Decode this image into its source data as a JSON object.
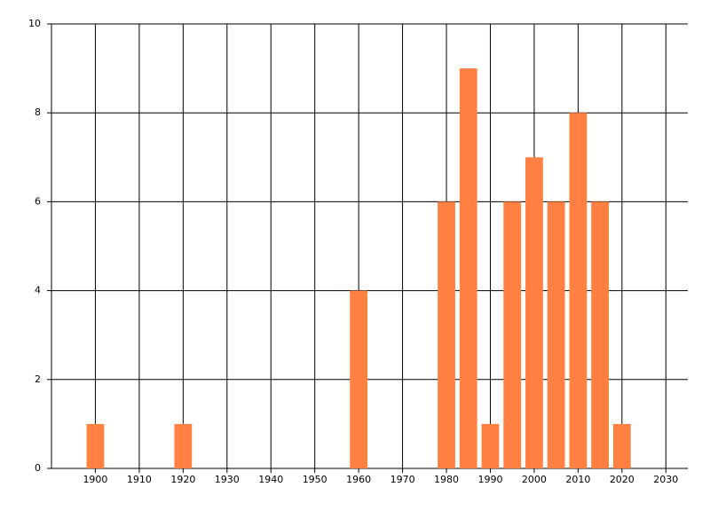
{
  "chart_data": {
    "type": "bar",
    "x": [
      1900,
      1920,
      1960,
      1980,
      1985,
      1990,
      1995,
      2000,
      2005,
      2010,
      2015,
      2020
    ],
    "values": [
      1,
      1,
      4,
      6,
      9,
      1,
      6,
      7,
      6,
      8,
      6,
      1
    ],
    "color": "#ff8040",
    "xlim": [
      1890,
      2035
    ],
    "xticks": [
      1900,
      1910,
      1920,
      1930,
      1940,
      1950,
      1960,
      1970,
      1980,
      1990,
      2000,
      2010,
      2020,
      2030
    ],
    "ylim": [
      0,
      10
    ],
    "yticks": [
      0,
      2,
      4,
      6,
      8,
      10
    ],
    "grid": true
  }
}
